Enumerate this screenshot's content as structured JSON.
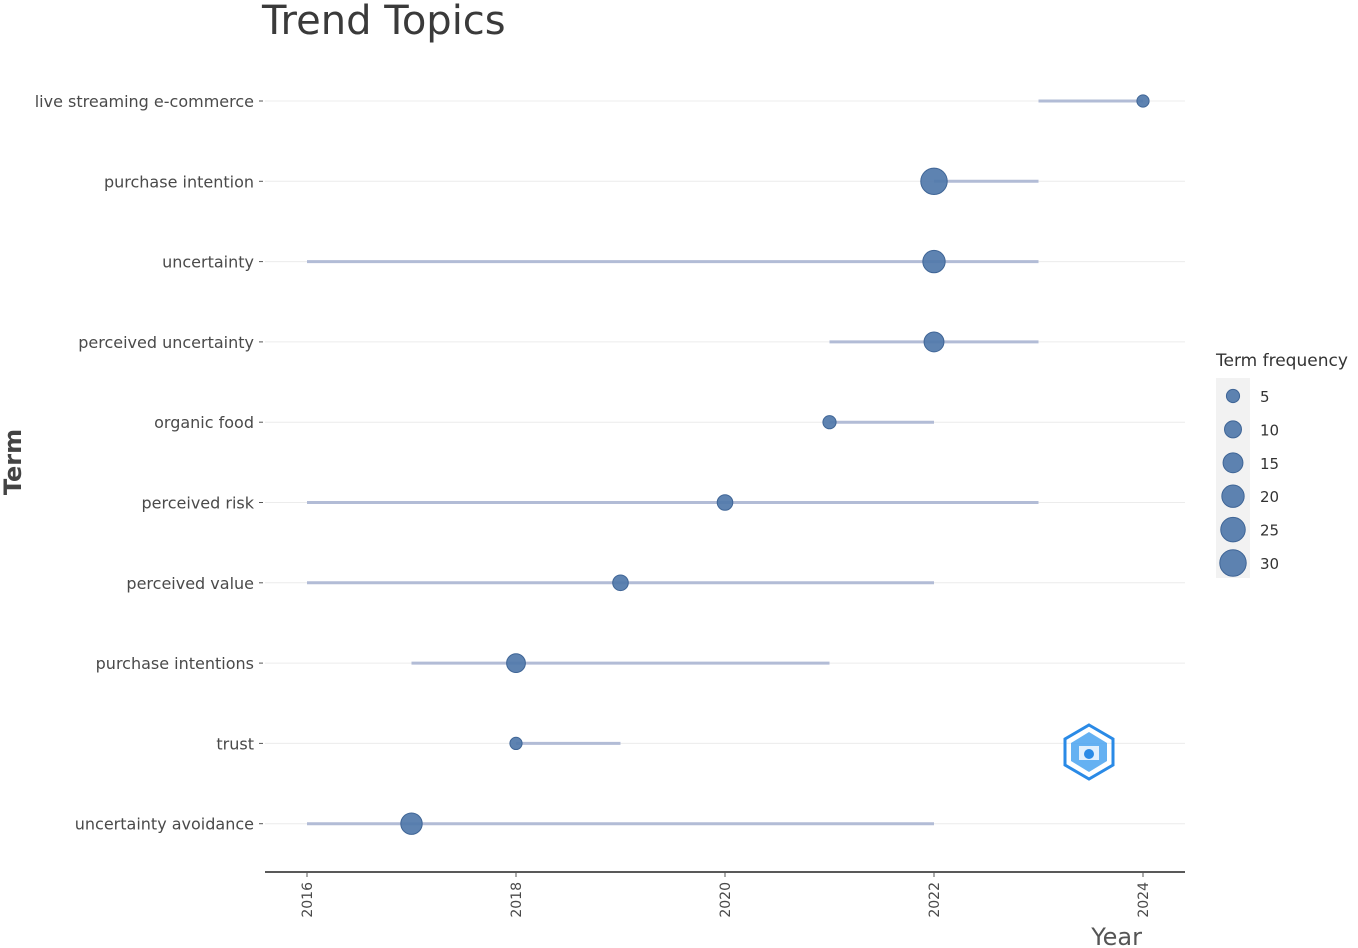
{
  "chart_data": {
    "type": "scatter",
    "title": "Trend Topics",
    "xlabel": "Year",
    "ylabel": "Term",
    "x_ticks": [
      2016,
      2018,
      2020,
      2022,
      2024
    ],
    "xlim": [
      2015.6,
      2024.4
    ],
    "grid": "horizontal",
    "legend_position": "right",
    "series": [
      {
        "term": "live streaming e-commerce",
        "range": [
          2023,
          2024
        ],
        "year": 2024,
        "freq": 4
      },
      {
        "term": "purchase intention",
        "range": [
          2022,
          2023
        ],
        "year": 2022,
        "freq": 30
      },
      {
        "term": "uncertainty",
        "range": [
          2016,
          2023
        ],
        "year": 2022,
        "freq": 20
      },
      {
        "term": "perceived uncertainty",
        "range": [
          2021,
          2023
        ],
        "year": 2022,
        "freq": 15
      },
      {
        "term": "organic food",
        "range": [
          2021,
          2022
        ],
        "year": 2021,
        "freq": 5
      },
      {
        "term": "perceived risk",
        "range": [
          2016,
          2023
        ],
        "year": 2020,
        "freq": 8
      },
      {
        "term": "perceived value",
        "range": [
          2016,
          2022
        ],
        "year": 2019,
        "freq": 8
      },
      {
        "term": "purchase intentions",
        "range": [
          2017,
          2021
        ],
        "year": 2018,
        "freq": 13
      },
      {
        "term": "trust",
        "range": [
          2018,
          2019
        ],
        "year": 2018,
        "freq": 4
      },
      {
        "term": "uncertainty avoidance",
        "range": [
          2016,
          2022
        ],
        "year": 2017,
        "freq": 18
      }
    ],
    "legend": {
      "title": "Term frequency",
      "sizes": [
        5,
        10,
        15,
        20,
        25,
        30
      ]
    },
    "colors": {
      "point": "#5078aa",
      "point_stroke": "#3f6596",
      "segment": "#b2bcd6",
      "gridline": "#ececec",
      "legend_bg": "#f2f2f2",
      "logo": "#2a8ae6"
    }
  }
}
